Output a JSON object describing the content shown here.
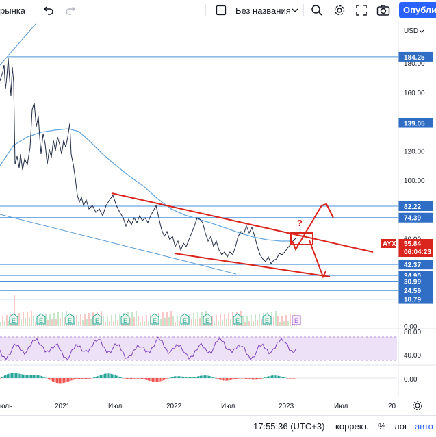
{
  "toolbar": {
    "market_label": "рынка",
    "layout_name": "Без названия",
    "publish_label": "Опублик"
  },
  "currency": "USD",
  "chart_data": {
    "type": "line",
    "symbol": "AYX",
    "price": "55.84",
    "countdown": "06:04:23",
    "y_range": [
      0,
      200
    ],
    "y_ticks": [
      180,
      160,
      140,
      120,
      100,
      60,
      0
    ],
    "x_ticks": [
      "юль",
      "2021",
      "Июл",
      "2022",
      "Июл",
      "2023",
      "Июл",
      "20"
    ],
    "horizontal_levels": [
      184.25,
      139.05,
      82.22,
      74.39,
      42.37,
      34.9,
      30.99,
      24.59,
      18.79
    ],
    "annotation": "?",
    "earnings_marker": "E",
    "rsi": {
      "ticks": [
        80.0,
        40.0
      ]
    },
    "macd": {
      "ticks": [
        0.0
      ]
    }
  },
  "status": {
    "time": "17:55:36 (UTC+3)",
    "adjust_label": "коррект.",
    "percent_label": "%",
    "log_label": "лог",
    "auto_label": "авто"
  }
}
